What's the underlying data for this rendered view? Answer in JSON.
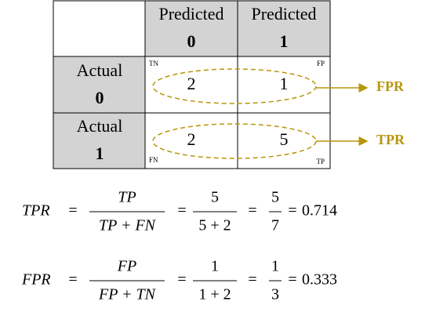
{
  "matrix": {
    "col_headers": [
      {
        "label": "Predicted",
        "value": "0"
      },
      {
        "label": "Predicted",
        "value": "1"
      }
    ],
    "row_headers": [
      {
        "label": "Actual",
        "value": "0"
      },
      {
        "label": "Actual",
        "value": "1"
      }
    ],
    "cells": [
      [
        {
          "tag": "TN",
          "value": 2
        },
        {
          "tag": "FP",
          "value": 1
        }
      ],
      [
        {
          "tag": "FN",
          "value": 2
        },
        {
          "tag": "TP",
          "value": 5
        }
      ]
    ]
  },
  "arrows": [
    "FPR",
    "TPR"
  ],
  "equations": [
    {
      "lhs": "TPR",
      "equals": "=",
      "frac1": {
        "num": "TP",
        "den": "TP + FN"
      },
      "frac2": {
        "num": "5",
        "den": "5 + 2"
      },
      "frac3": {
        "num": "5",
        "den": "7"
      },
      "result": "0.714"
    },
    {
      "lhs": "FPR",
      "equals": "=",
      "frac1": {
        "num": "FP",
        "den": "FP + TN"
      },
      "frac2": {
        "num": "1",
        "den": "1 + 2"
      },
      "frac3": {
        "num": "1",
        "den": "3"
      },
      "result": "0.333"
    }
  ]
}
